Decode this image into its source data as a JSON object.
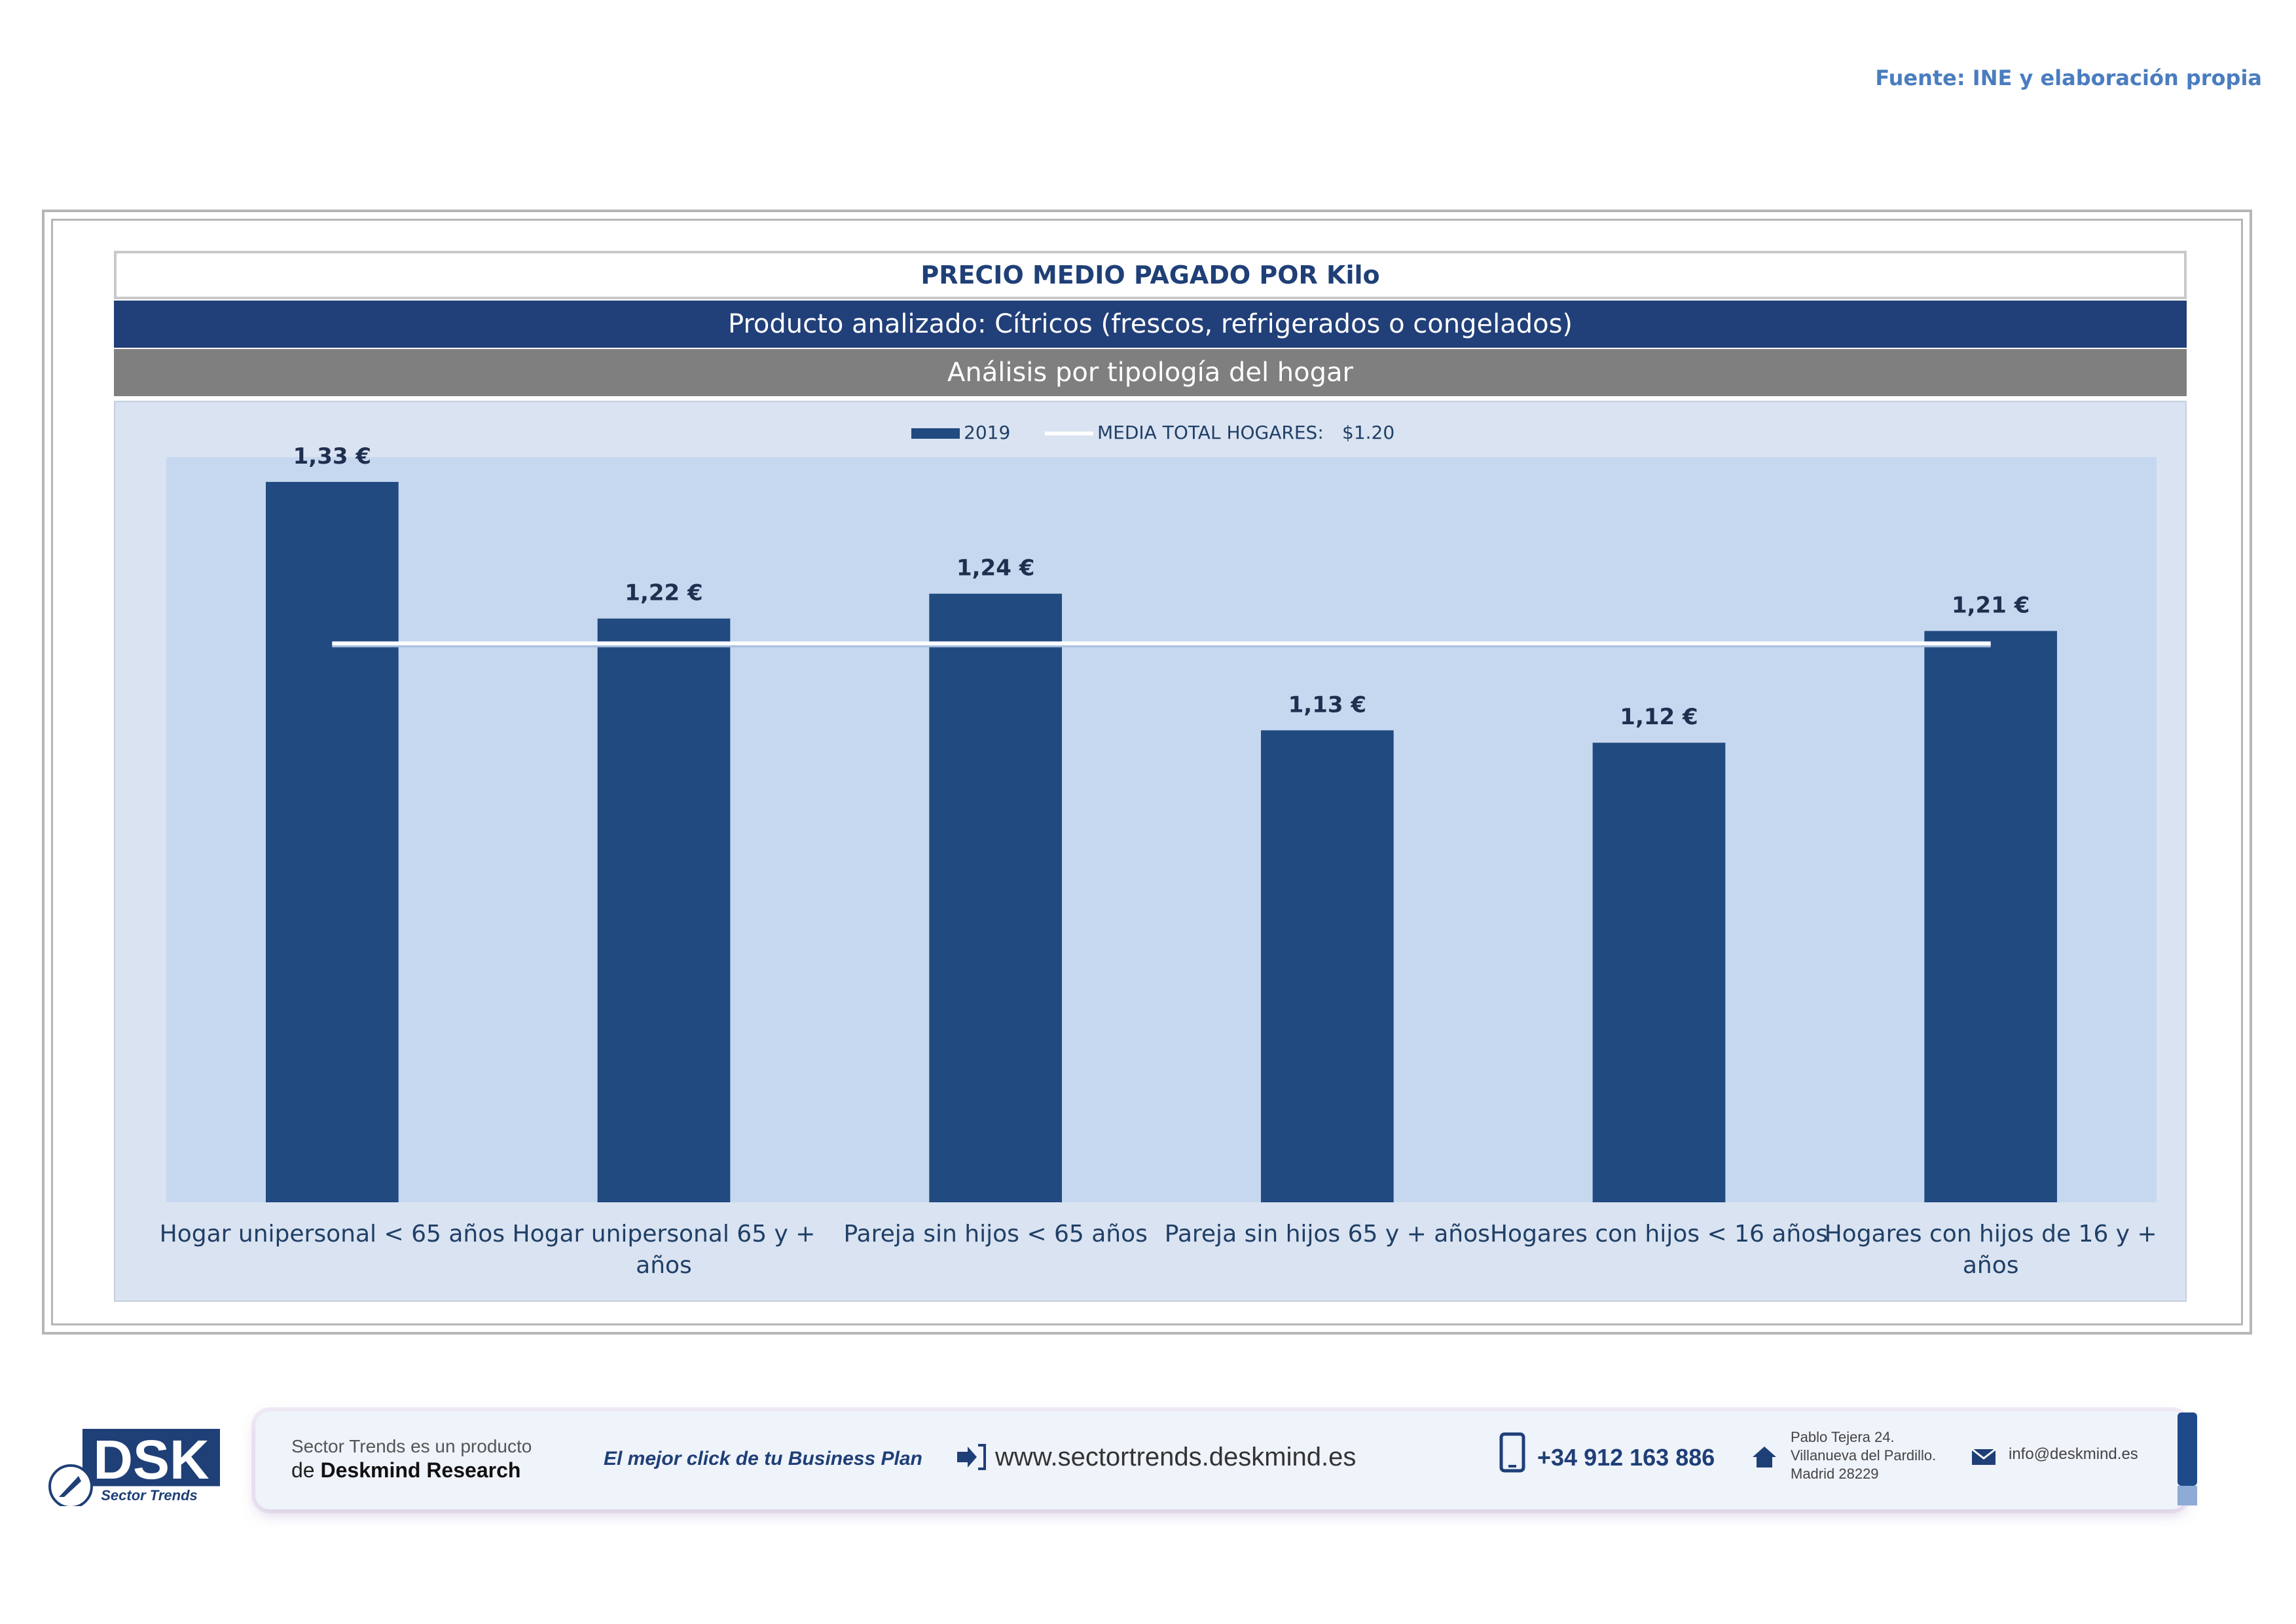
{
  "source": "Fuente: INE y elaboración propia",
  "header": {
    "title": "PRECIO MEDIO PAGADO POR Kilo",
    "product": "Producto analizado: Cítricos (frescos, refrigerados o congelados)",
    "analysis": "Análisis por tipología del hogar"
  },
  "chart_data": {
    "type": "bar",
    "categories": [
      "Hogar unipersonal < 65 años",
      "Hogar unipersonal  65 y + años",
      "Pareja sin hijos < 65 años",
      "Pareja sin hijos 65 y + años",
      "Hogares con hijos < 16 años",
      "Hogares con hijos de 16 y + años"
    ],
    "category_lines": [
      [
        "Hogar unipersonal < 65 años"
      ],
      [
        "Hogar unipersonal  65 y +",
        "años"
      ],
      [
        "Pareja sin hijos < 65 años"
      ],
      [
        "Pareja sin hijos 65 y + años"
      ],
      [
        "Hogares con hijos < 16 años"
      ],
      [
        "Hogares con hijos de 16 y +",
        "años"
      ]
    ],
    "series": [
      {
        "name": "2019",
        "values": [
          1.33,
          1.22,
          1.24,
          1.13,
          1.12,
          1.21
        ],
        "color": "#214a80"
      }
    ],
    "data_labels": [
      "1,33 €",
      "1,22 €",
      "1,24 €",
      "1,13 €",
      "1,12 €",
      "1,21 €"
    ],
    "reference_line": {
      "name": "MEDIA TOTAL  HOGARES:",
      "value_label": "$1.20",
      "value": 1.2,
      "color": "#ffffff"
    },
    "ylim": [
      0.75,
      1.35
    ],
    "legend_position": "top-center",
    "plot_background": "#c6d8ef",
    "grid": false
  },
  "footer": {
    "logo_text": "DSK",
    "logo_subtitle": "Sector Trends",
    "product_line1": "Sector Trends es un producto",
    "product_line2_prefix": "de ",
    "product_line2_brand": "Deskmind Research",
    "slogan": "El mejor click de tu Business Plan",
    "website": "www.sectortrends.deskmind.es",
    "phone": "+34 912 163 886",
    "address_line1": "Pablo Tejera 24.",
    "address_line2": "Villanueva del Pardillo.",
    "address_line3": "Madrid 28229",
    "email": "info@deskmind.es"
  }
}
